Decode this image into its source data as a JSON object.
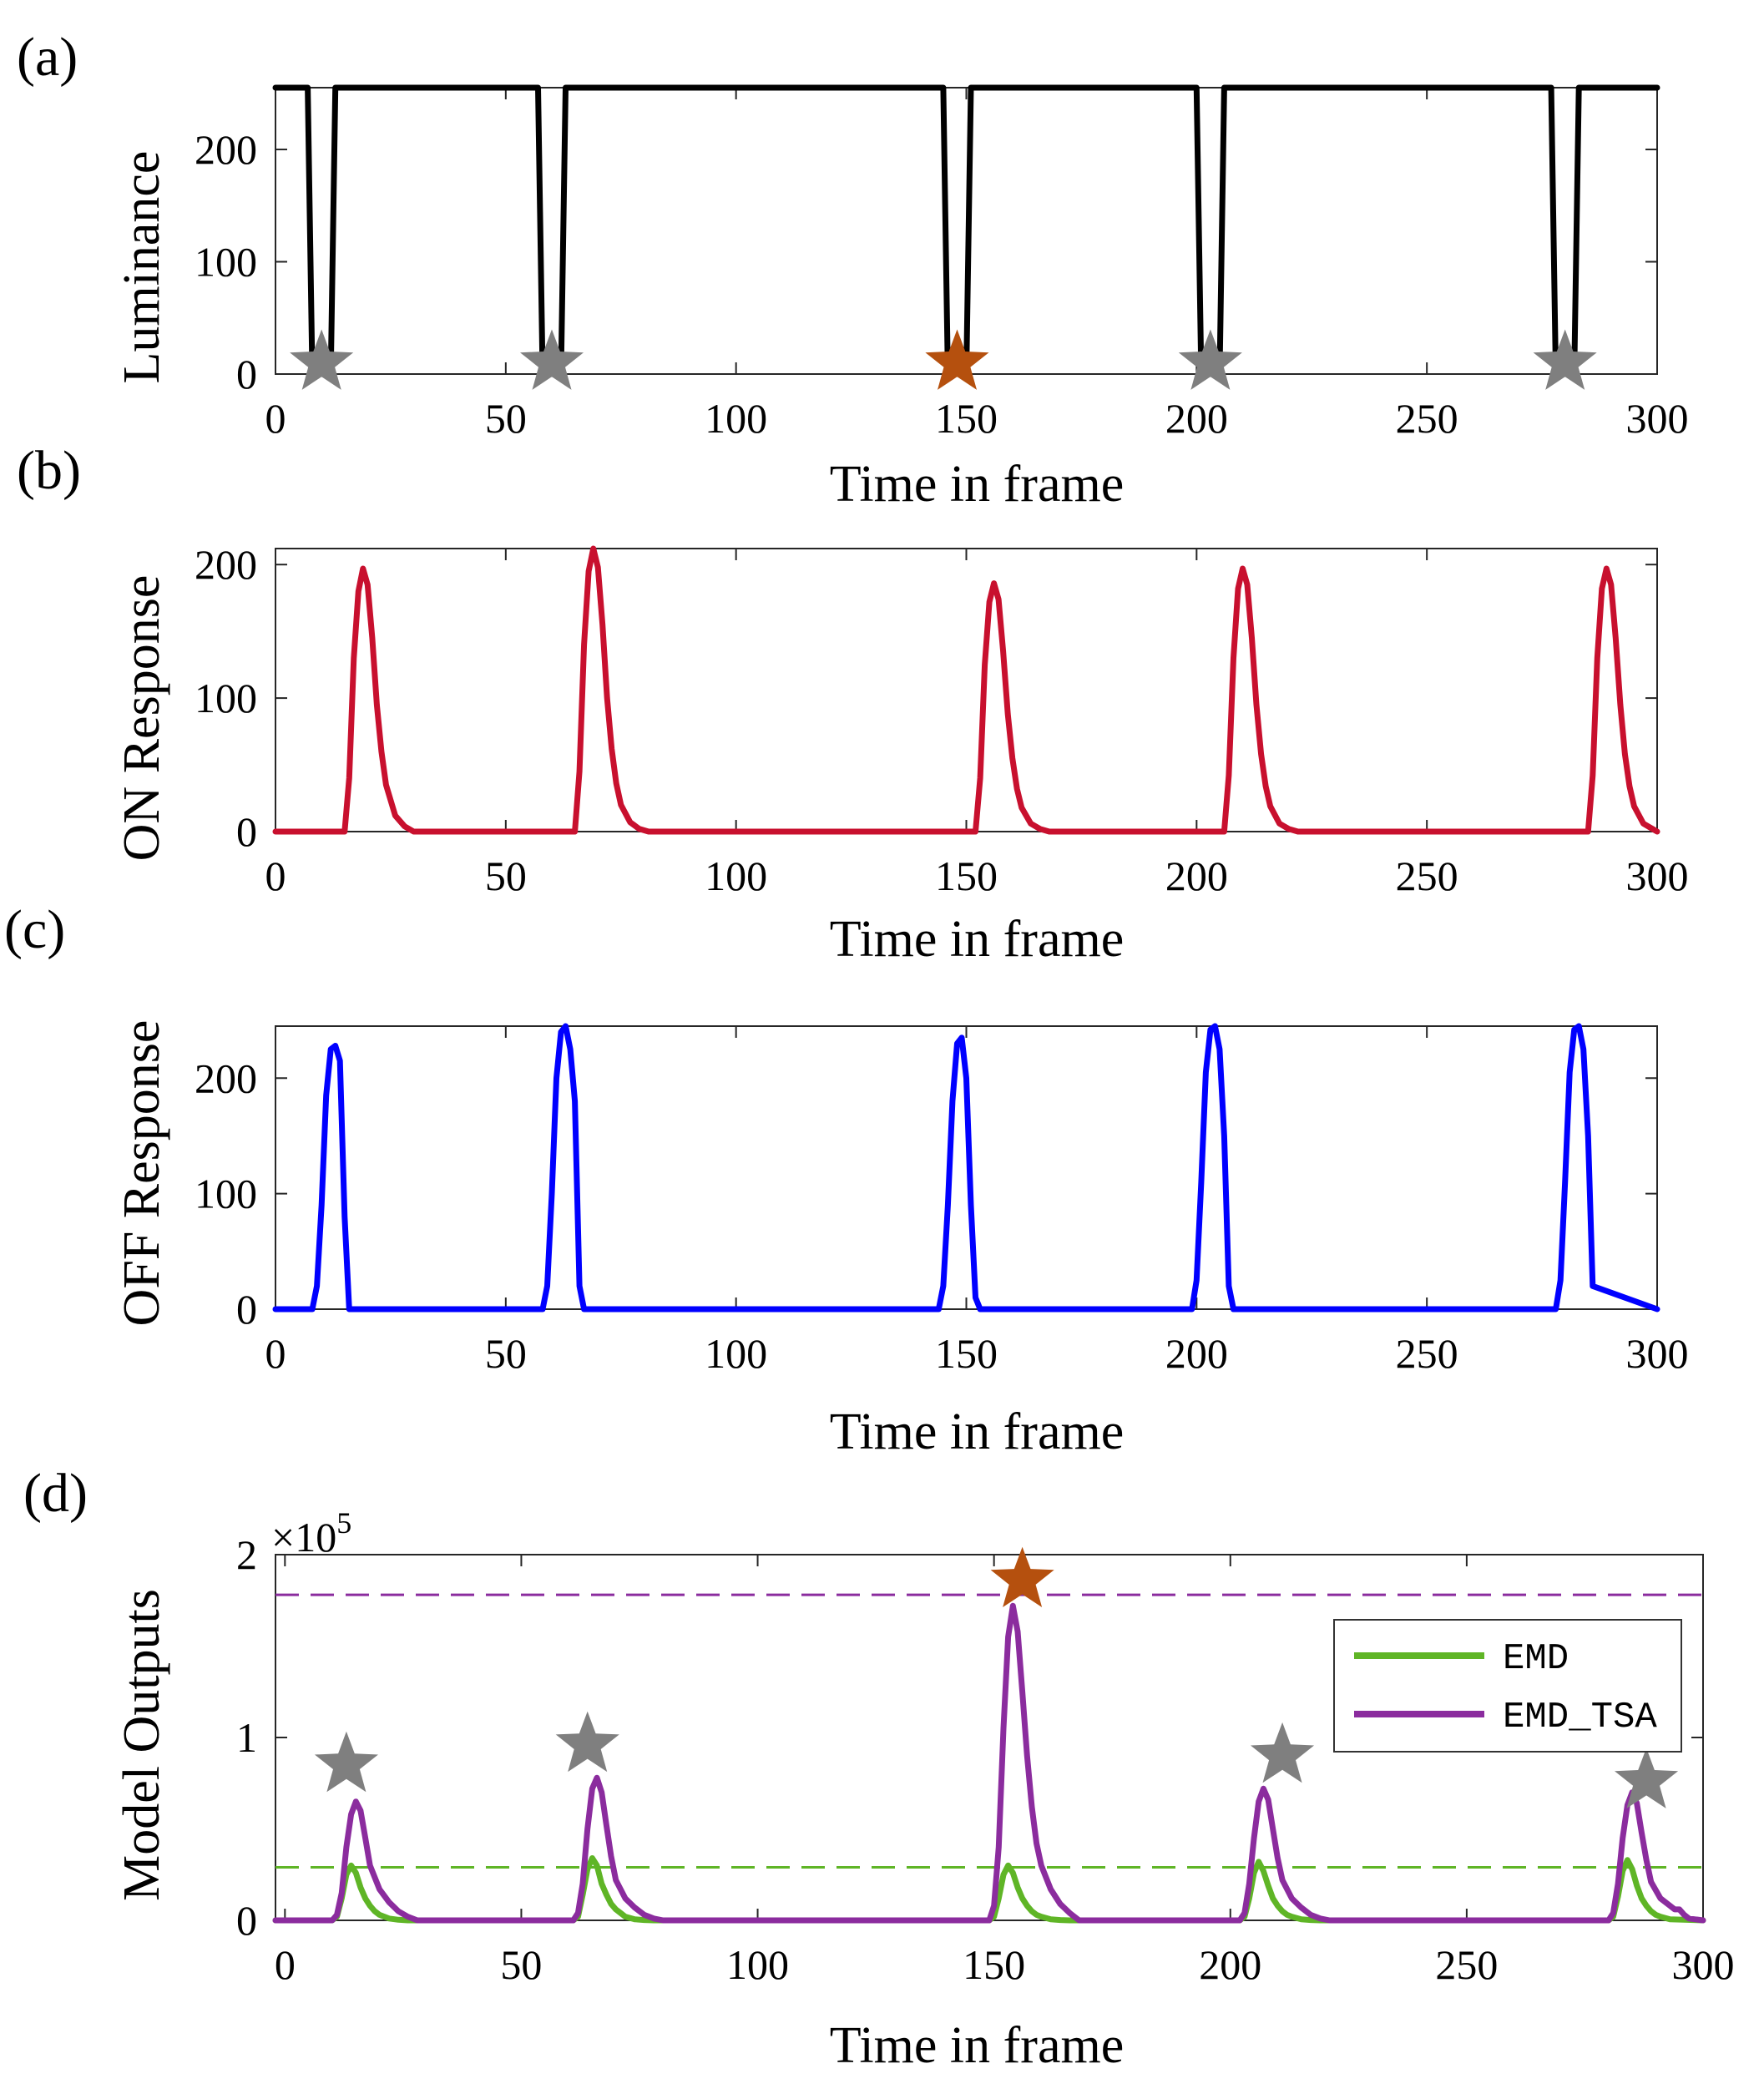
{
  "chart_data": [
    {
      "type": "line",
      "panel_label": "(a)",
      "title": "",
      "xlabel": "Time in frame",
      "ylabel": "Luminance",
      "xlim": [
        0,
        300
      ],
      "ylim": [
        0,
        255
      ],
      "xticks": [
        "0",
        "50",
        "100",
        "150",
        "200",
        "250",
        "300"
      ],
      "yticks": [
        "0",
        "100",
        "200"
      ],
      "series": [
        {
          "name": "Luminance",
          "color": "#000000",
          "x": [
            0,
            7,
            8,
            10,
            12,
            13,
            57,
            58,
            60,
            62,
            63,
            145,
            146,
            148,
            150,
            151,
            200,
            201,
            203,
            205,
            206,
            277,
            278,
            280,
            282,
            283,
            300
          ],
          "y": [
            255,
            255,
            0,
            0,
            0,
            255,
            255,
            0,
            0,
            0,
            255,
            255,
            0,
            0,
            0,
            255,
            255,
            0,
            0,
            0,
            255,
            255,
            0,
            0,
            0,
            255,
            255
          ]
        }
      ],
      "markers": [
        {
          "x": 10,
          "y": 10,
          "color": "#7f7f7f",
          "symbol": "star"
        },
        {
          "x": 60,
          "y": 10,
          "color": "#7f7f7f",
          "symbol": "star"
        },
        {
          "x": 148,
          "y": 10,
          "color": "#b5500e",
          "symbol": "star"
        },
        {
          "x": 203,
          "y": 10,
          "color": "#7f7f7f",
          "symbol": "star"
        },
        {
          "x": 280,
          "y": 10,
          "color": "#7f7f7f",
          "symbol": "star"
        }
      ]
    },
    {
      "type": "line",
      "panel_label": "(b)",
      "title": "",
      "xlabel": "Time in frame",
      "ylabel": "ON Response",
      "xlim": [
        0,
        300
      ],
      "ylim": [
        0,
        212
      ],
      "xticks": [
        "0",
        "50",
        "100",
        "150",
        "200",
        "250",
        "300"
      ],
      "yticks": [
        "0",
        "100",
        "200"
      ],
      "series": [
        {
          "name": "ON Response",
          "color": "#c8102e",
          "x": [
            0,
            15,
            16,
            17,
            18,
            19,
            20,
            21,
            22,
            23,
            24,
            26,
            28,
            30,
            65,
            66,
            67,
            68,
            69,
            70,
            71,
            72,
            73,
            74,
            75,
            77,
            79,
            81,
            152,
            153,
            154,
            155,
            156,
            157,
            158,
            159,
            160,
            161,
            162,
            164,
            166,
            168,
            206,
            207,
            208,
            209,
            210,
            211,
            212,
            213,
            214,
            215,
            216,
            218,
            220,
            222,
            285,
            286,
            287,
            288,
            289,
            290,
            291,
            292,
            293,
            294,
            295,
            297,
            299,
            300
          ],
          "y": [
            0,
            0,
            40,
            130,
            180,
            197,
            185,
            145,
            95,
            60,
            35,
            12,
            4,
            0,
            0,
            45,
            140,
            195,
            212,
            198,
            155,
            100,
            62,
            36,
            20,
            7,
            2,
            0,
            0,
            40,
            125,
            172,
            186,
            174,
            135,
            88,
            55,
            32,
            18,
            6,
            2,
            0,
            0,
            42,
            130,
            182,
            197,
            185,
            145,
            95,
            58,
            34,
            19,
            6,
            2,
            0,
            0,
            42,
            130,
            182,
            197,
            185,
            145,
            95,
            58,
            34,
            19,
            6,
            2,
            0
          ]
        }
      ]
    },
    {
      "type": "line",
      "panel_label": "(c)",
      "title": "",
      "xlabel": "Time in frame",
      "ylabel": "OFF Response",
      "xlim": [
        0,
        300
      ],
      "ylim": [
        0,
        245
      ],
      "xticks": [
        "0",
        "50",
        "100",
        "150",
        "200",
        "250",
        "300"
      ],
      "yticks": [
        "0",
        "100",
        "200"
      ],
      "series": [
        {
          "name": "OFF Response",
          "color": "#0000ff",
          "x": [
            0,
            8,
            9,
            10,
            11,
            12,
            13,
            14,
            15,
            16,
            58,
            59,
            60,
            61,
            62,
            63,
            64,
            65,
            66,
            67,
            144,
            145,
            146,
            147,
            148,
            149,
            150,
            151,
            152,
            153,
            199,
            200,
            201,
            202,
            203,
            204,
            205,
            206,
            207,
            208,
            278,
            279,
            280,
            281,
            282,
            283,
            284,
            285,
            286,
            300
          ],
          "y": [
            0,
            0,
            20,
            90,
            185,
            225,
            228,
            215,
            80,
            0,
            0,
            20,
            100,
            200,
            240,
            245,
            225,
            180,
            20,
            0,
            0,
            20,
            90,
            180,
            230,
            235,
            200,
            90,
            10,
            0,
            0,
            25,
            110,
            205,
            242,
            245,
            225,
            150,
            20,
            0,
            0,
            25,
            110,
            205,
            242,
            245,
            225,
            150,
            20,
            0
          ]
        }
      ]
    },
    {
      "type": "line",
      "panel_label": "(d)",
      "title": "",
      "xlabel": "Time in frame",
      "ylabel": "Model Outputs",
      "exponent_label": "×10",
      "exponent_power": "5",
      "xlim": [
        -2,
        300
      ],
      "ylim": [
        0,
        2
      ],
      "xticks": [
        "0",
        "50",
        "100",
        "150",
        "200",
        "250",
        "300"
      ],
      "yticks": [
        "0",
        "1",
        "2"
      ],
      "legend": {
        "position": "upper-right",
        "entries": [
          "EMD",
          "EMD_TSA"
        ]
      },
      "series": [
        {
          "name": "EMD",
          "color": "#5fb526",
          "x": [
            -2,
            10,
            11,
            12,
            13,
            14,
            15,
            16,
            17,
            18,
            19,
            20,
            22,
            24,
            26,
            61,
            62,
            63,
            64,
            65,
            66,
            67,
            68,
            69,
            70,
            71,
            72,
            74,
            76,
            78,
            149,
            150,
            151,
            152,
            153,
            154,
            155,
            156,
            157,
            158,
            159,
            160,
            162,
            164,
            166,
            202,
            203,
            204,
            205,
            206,
            207,
            208,
            209,
            210,
            211,
            212,
            213,
            215,
            217,
            219,
            280,
            281,
            282,
            283,
            284,
            285,
            286,
            287,
            288,
            289,
            290,
            291,
            293,
            300
          ],
          "y": [
            0,
            0,
            0.02,
            0.12,
            0.25,
            0.3,
            0.26,
            0.18,
            0.12,
            0.08,
            0.05,
            0.03,
            0.01,
            0.003,
            0,
            0,
            0.02,
            0.14,
            0.28,
            0.34,
            0.3,
            0.2,
            0.14,
            0.09,
            0.06,
            0.04,
            0.02,
            0.006,
            0.002,
            0,
            0,
            0.02,
            0.12,
            0.25,
            0.3,
            0.26,
            0.18,
            0.12,
            0.08,
            0.05,
            0.03,
            0.02,
            0.006,
            0.002,
            0,
            0,
            0.02,
            0.12,
            0.26,
            0.32,
            0.27,
            0.19,
            0.12,
            0.08,
            0.05,
            0.03,
            0.02,
            0.006,
            0.002,
            0,
            0,
            0.02,
            0.13,
            0.27,
            0.33,
            0.28,
            0.19,
            0.12,
            0.08,
            0.05,
            0.03,
            0.02,
            0.006,
            0
          ]
        },
        {
          "name": "EMD_TSA",
          "color": "#8b2c9e",
          "x": [
            -2,
            10,
            11,
            12,
            13,
            14,
            15,
            16,
            17,
            18,
            20,
            22,
            24,
            26,
            28,
            61,
            62,
            63,
            64,
            65,
            66,
            67,
            68,
            69,
            70,
            72,
            74,
            76,
            78,
            80,
            149,
            150,
            151,
            152,
            153,
            154,
            155,
            156,
            157,
            158,
            159,
            160,
            162,
            164,
            166,
            168,
            202,
            203,
            204,
            205,
            206,
            207,
            208,
            209,
            210,
            211,
            213,
            215,
            217,
            219,
            221,
            280,
            281,
            282,
            283,
            284,
            285,
            286,
            287,
            288,
            289,
            291,
            293,
            294,
            295,
            296,
            297,
            300
          ],
          "y": [
            0,
            0,
            0.03,
            0.15,
            0.4,
            0.58,
            0.65,
            0.6,
            0.45,
            0.3,
            0.17,
            0.1,
            0.05,
            0.02,
            0,
            0,
            0.04,
            0.2,
            0.5,
            0.72,
            0.78,
            0.7,
            0.52,
            0.35,
            0.22,
            0.12,
            0.07,
            0.03,
            0.01,
            0,
            0,
            0.08,
            0.4,
            1.05,
            1.55,
            1.72,
            1.58,
            1.25,
            0.9,
            0.62,
            0.42,
            0.3,
            0.17,
            0.09,
            0.04,
            0,
            0,
            0.04,
            0.2,
            0.45,
            0.65,
            0.72,
            0.66,
            0.5,
            0.34,
            0.22,
            0.12,
            0.07,
            0.03,
            0.01,
            0,
            0,
            0.04,
            0.2,
            0.45,
            0.63,
            0.7,
            0.64,
            0.48,
            0.33,
            0.21,
            0.12,
            0.08,
            0.06,
            0.06,
            0.03,
            0.01,
            0
          ]
        }
      ],
      "thresholds": [
        {
          "y": 1.78,
          "color": "#8b2c9e",
          "style": "dashed"
        },
        {
          "y": 0.29,
          "color": "#5fb526",
          "style": "dashed"
        }
      ],
      "markers": [
        {
          "x": 13,
          "y": 0.85,
          "color": "#7f7f7f",
          "symbol": "star"
        },
        {
          "x": 64,
          "y": 0.96,
          "color": "#7f7f7f",
          "symbol": "star"
        },
        {
          "x": 156,
          "y": 1.86,
          "color": "#b5500e",
          "symbol": "star"
        },
        {
          "x": 211,
          "y": 0.9,
          "color": "#7f7f7f",
          "symbol": "star"
        },
        {
          "x": 288,
          "y": 0.76,
          "color": "#7f7f7f",
          "symbol": "star"
        }
      ]
    }
  ]
}
